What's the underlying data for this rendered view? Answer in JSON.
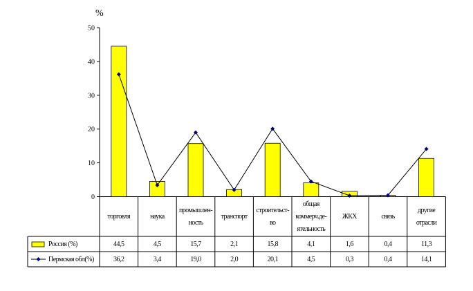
{
  "chart_data": {
    "type": "bar",
    "ylabel": "%",
    "ylim": [
      0,
      50
    ],
    "yticks": [
      0,
      10,
      20,
      30,
      40,
      50
    ],
    "categories": [
      "торговля",
      "наука",
      "промышлен-\nность",
      "транспорт",
      "строительст-\nво",
      "общая\nкоммерч.де-\nятельность",
      "ЖКХ",
      "связь",
      "другие\nотрасли"
    ],
    "series": [
      {
        "name": "Россия (%)",
        "type": "bar",
        "color": "#ffff00",
        "values": [
          44.5,
          4.5,
          15.7,
          2.1,
          15.8,
          4.1,
          1.6,
          0.4,
          11.3
        ],
        "labels": [
          "44,5",
          "4,5",
          "15,7",
          "2,1",
          "15,8",
          "4,1",
          "1,6",
          "0,4",
          "11,3"
        ]
      },
      {
        "name": "Пермская обл(%)",
        "type": "line",
        "color": "#000080",
        "values": [
          36.2,
          3.4,
          19.0,
          2.0,
          20.1,
          4.5,
          0.3,
          0.4,
          14.1
        ],
        "labels": [
          "36,2",
          "3,4",
          "19,0",
          "2,0",
          "20,1",
          "4,5",
          "0,3",
          "0,4",
          "14,1"
        ]
      }
    ],
    "legend": "table-left"
  }
}
